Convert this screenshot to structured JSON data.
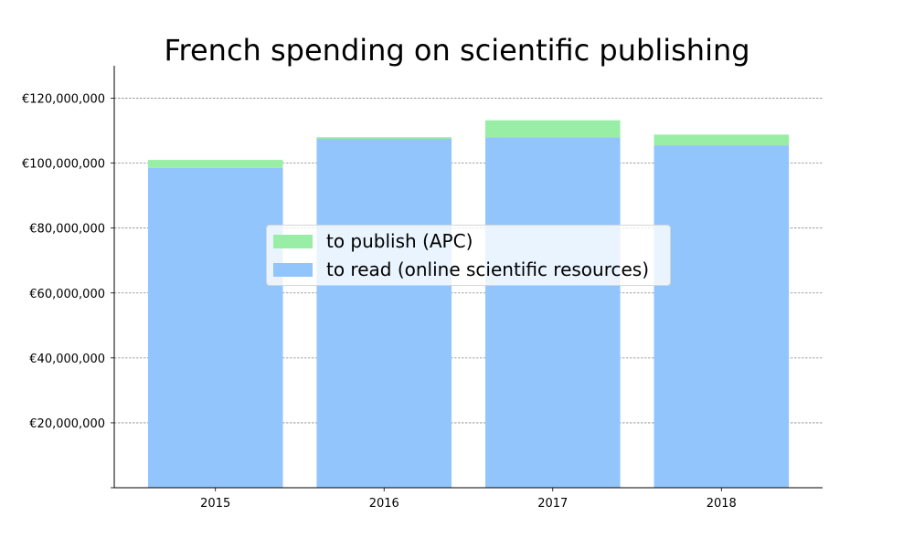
{
  "chart_data": {
    "type": "bar",
    "stacked": true,
    "title": "French spending on scientific publishing",
    "xlabel": "",
    "ylabel": "",
    "categories": [
      "2015",
      "2016",
      "2017",
      "2018"
    ],
    "series": [
      {
        "name": "to read (online scientific resources)",
        "color": "#93c5fd",
        "values": [
          98500000,
          107500000,
          108000000,
          105500000
        ]
      },
      {
        "name": "to publish (APC)",
        "color": "#99eea6",
        "values": [
          2500000,
          500000,
          5200000,
          3300000
        ]
      }
    ],
    "ylim": [
      0,
      130000000
    ],
    "yticks": [
      20000000,
      40000000,
      60000000,
      80000000,
      100000000,
      120000000
    ],
    "ytick_labels": [
      "€20,000,000",
      "€40,000,000",
      "€60,000,000",
      "€80,000,000",
      "€100,000,000",
      "€120,000,000"
    ],
    "grid": "y dashed",
    "legend": {
      "placement": "center",
      "entries": [
        "to publish (APC)",
        "to read (online scientific resources)"
      ]
    }
  }
}
